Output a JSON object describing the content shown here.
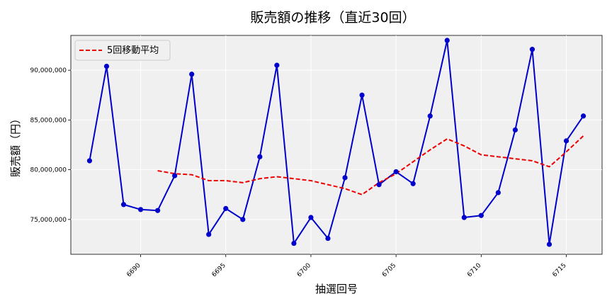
{
  "chart_data": {
    "type": "line",
    "title": "販売額の推移（直近30回）",
    "xlabel": "抽選回号",
    "ylabel": "販売額（円）",
    "xlim": [
      6685.9,
      6717.1
    ],
    "ylim": [
      71500000,
      93500000
    ],
    "xticks": [
      6690,
      6695,
      6700,
      6705,
      6710,
      6715
    ],
    "yticks": [
      75000000,
      80000000,
      85000000,
      90000000
    ],
    "ytick_labels": [
      "75,000,000",
      "80,000,000",
      "85,000,000",
      "90,000,000"
    ],
    "grid": true,
    "legend_position": "top-left",
    "series": [
      {
        "name": "",
        "color": "#0000cc",
        "marker": "circle",
        "line_style": "solid",
        "x": [
          6687,
          6688,
          6689,
          6690,
          6691,
          6692,
          6693,
          6694,
          6695,
          6696,
          6697,
          6698,
          6699,
          6700,
          6701,
          6702,
          6703,
          6704,
          6705,
          6706,
          6707,
          6708,
          6709,
          6710,
          6711,
          6712,
          6713,
          6714,
          6715,
          6716
        ],
        "values": [
          80900000,
          90400000,
          76500000,
          76000000,
          75900000,
          79400000,
          89600000,
          73500000,
          76100000,
          75000000,
          81300000,
          90500000,
          72600000,
          75200000,
          73100000,
          79200000,
          87500000,
          78500000,
          79800000,
          78600000,
          85400000,
          93000000,
          75200000,
          75400000,
          77700000,
          84000000,
          92100000,
          72500000,
          82900000,
          85400000
        ]
      },
      {
        "name": "5回移動平均",
        "color": "#ee0000",
        "line_style": "dashed",
        "x": [
          6691,
          6692,
          6693,
          6694,
          6695,
          6696,
          6697,
          6698,
          6699,
          6700,
          6701,
          6702,
          6703,
          6704,
          6705,
          6706,
          6707,
          6708,
          6709,
          6710,
          6711,
          6712,
          6713,
          6714,
          6715,
          6716
        ],
        "values": [
          79900000,
          79600000,
          79500000,
          78900000,
          78900000,
          78700000,
          79100000,
          79300000,
          79100000,
          78900000,
          78500000,
          78100000,
          77500000,
          78700000,
          79600000,
          80800000,
          82000000,
          83100000,
          82400000,
          81500000,
          81300000,
          81100000,
          80900000,
          80300000,
          81800000,
          83400000
        ]
      }
    ]
  }
}
